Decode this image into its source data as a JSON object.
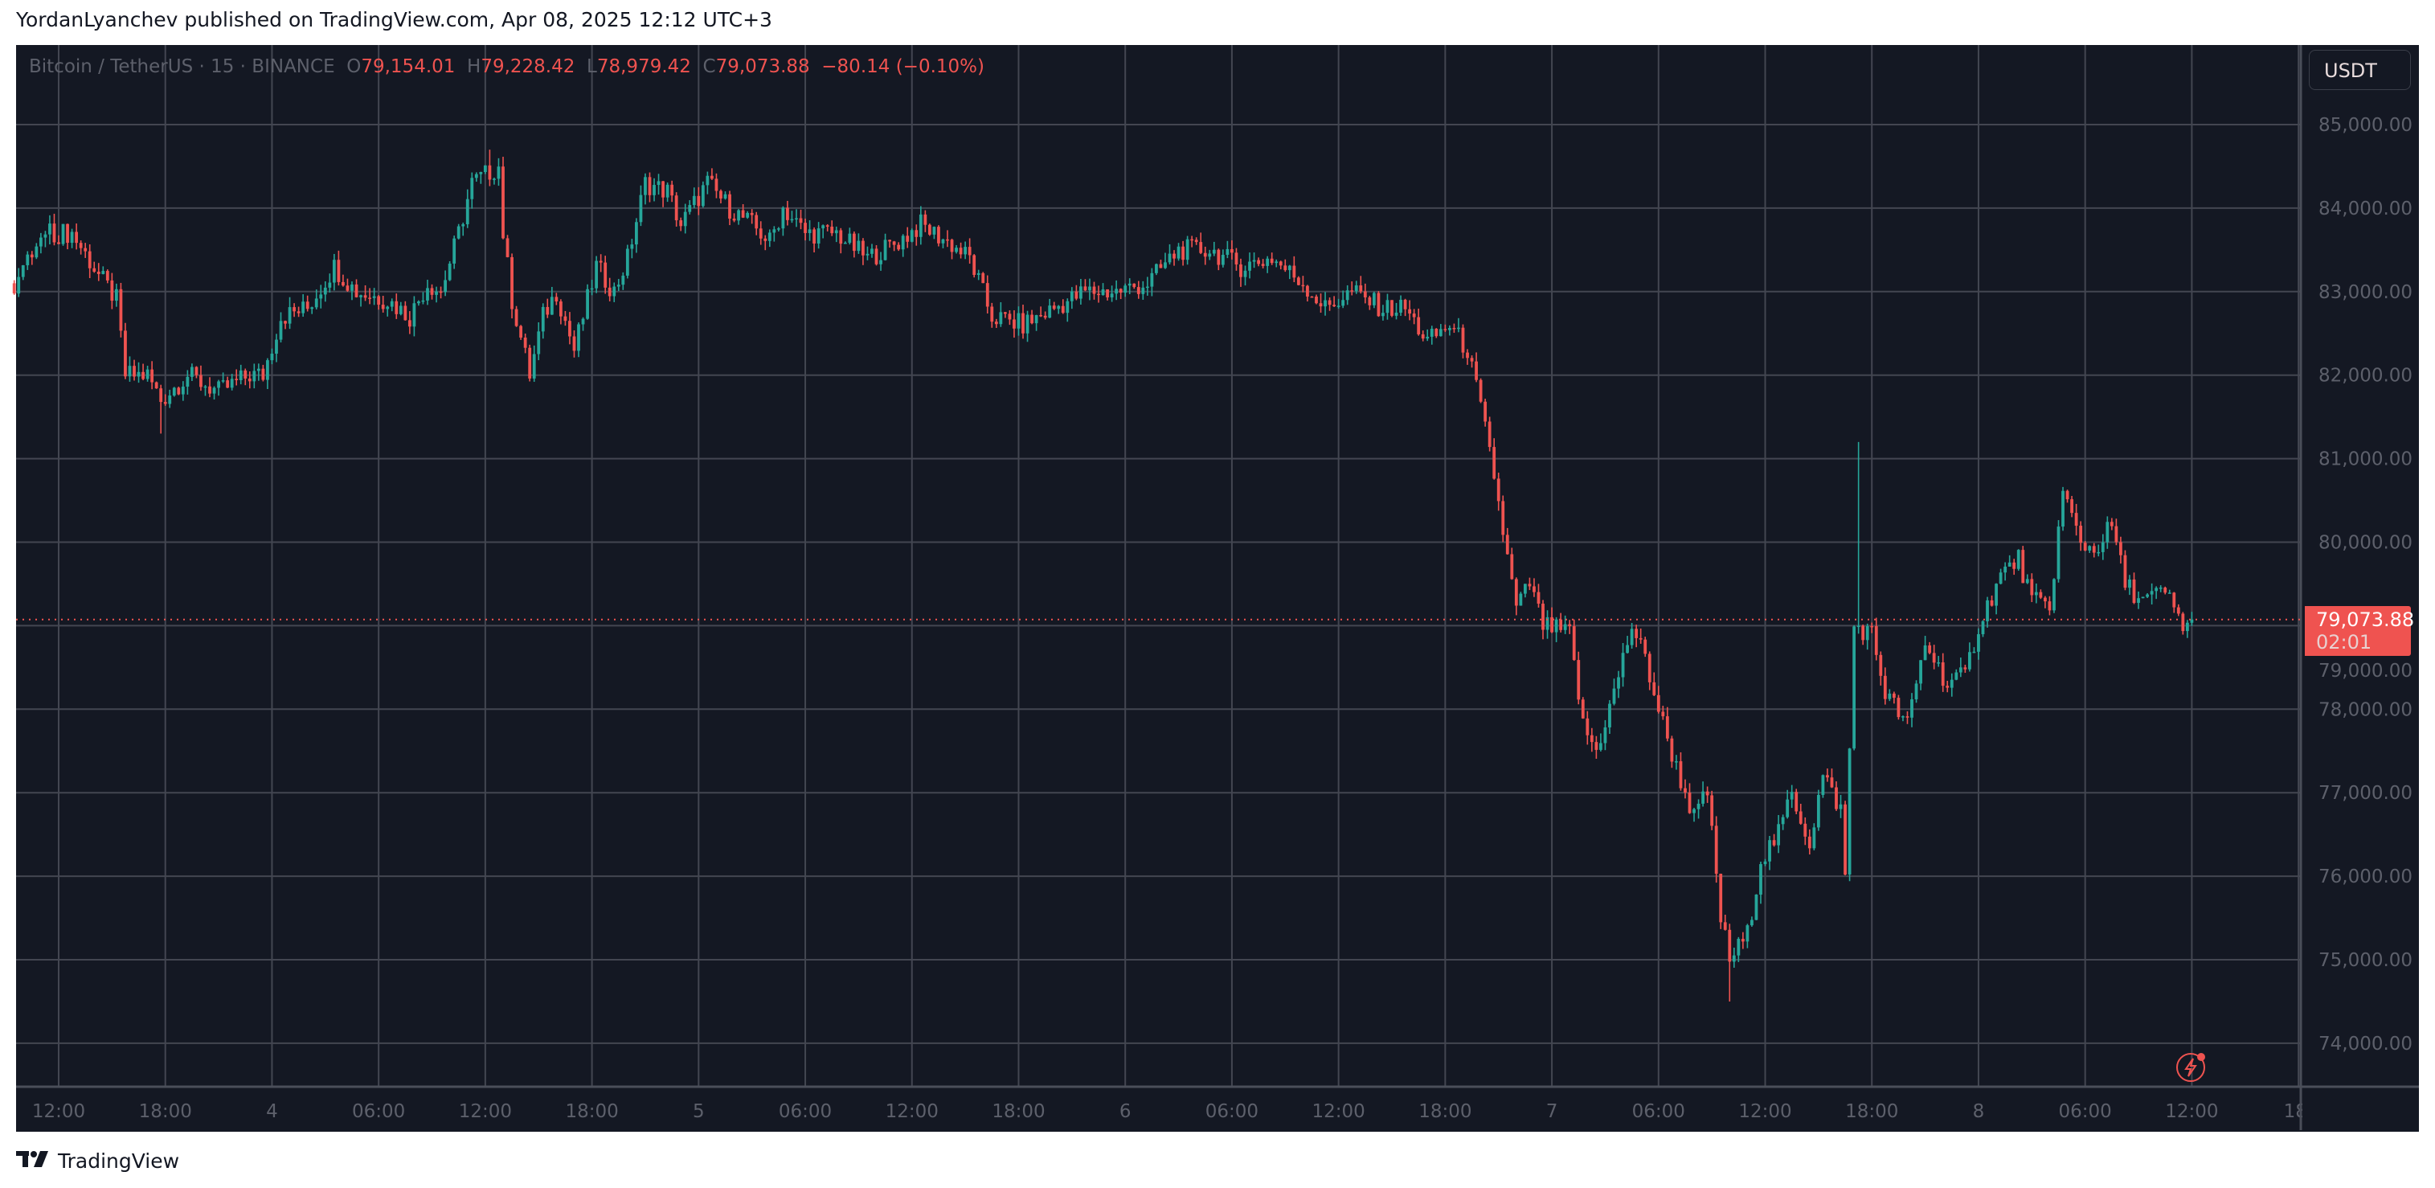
{
  "publish_line": "YordanLyanchev published on TradingView.com, Apr 08, 2025 12:12 UTC+3",
  "legend": {
    "symbol": "Bitcoin / TetherUS · 15 · BINANCE",
    "open_label": "O",
    "open": "79,154.01",
    "high_label": "H",
    "high": "79,228.42",
    "low_label": "L",
    "low": "78,979.42",
    "close_label": "C",
    "close": "79,073.88",
    "change": "−80.14 (−0.10%)"
  },
  "currency_button": "USDT",
  "last_price": {
    "value": "79,073.88",
    "countdown": "02:01"
  },
  "footer": {
    "logo_mark": "17",
    "brand": "TradingView"
  },
  "icons": {
    "alert": "lightning-icon",
    "logo": "tradingview-logo-icon"
  },
  "colors": {
    "up": "#26a69a",
    "down": "#ef5350",
    "background": "#141823",
    "grid": "#363a45",
    "last_price": "#ef5350"
  },
  "chart_data": {
    "type": "candlestick",
    "symbol": "BTCUSDT",
    "interval": "15",
    "exchange": "BINANCE",
    "ylim": [
      73500,
      85600
    ],
    "y_ticks": [
      "85,000.00",
      "84,000.00",
      "83,000.00",
      "82,000.00",
      "81,000.00",
      "80,000.00",
      "79,000.00",
      "78,000.00",
      "77,000.00",
      "76,000.00",
      "75,000.00",
      "74,000.00"
    ],
    "x_ticks": [
      "12:00",
      "18:00",
      "4",
      "06:00",
      "12:00",
      "18:00",
      "5",
      "06:00",
      "12:00",
      "18:00",
      "6",
      "06:00",
      "12:00",
      "18:00",
      "7",
      "06:00",
      "12:00",
      "18:00",
      "8",
      "06:00",
      "12:00",
      "18:"
    ],
    "grid": true,
    "last_price": 79073.88,
    "approx_close_path": [
      [
        "04-03 09:30",
        83100
      ],
      [
        "04-03 11:15",
        83700
      ],
      [
        "04-03 12:45",
        83700
      ],
      [
        "04-03 14:15",
        83200
      ],
      [
        "04-03 15:15",
        82900
      ],
      [
        "04-03 15:45",
        82000
      ],
      [
        "04-03 17:00",
        82000
      ],
      [
        "04-03 17:45",
        81700
      ],
      [
        "04-03 19:15",
        82000
      ],
      [
        "04-03 21:00",
        81800
      ],
      [
        "04-03 22:45",
        82000
      ],
      [
        "04-03 23:30",
        82000
      ],
      [
        "04-04 00:30",
        82700
      ],
      [
        "04-04 02:00",
        82800
      ],
      [
        "04-04 03:30",
        83300
      ],
      [
        "04-04 04:45",
        83000
      ],
      [
        "04-04 06:30",
        82900
      ],
      [
        "04-04 07:45",
        82700
      ],
      [
        "04-04 08:45",
        83100
      ],
      [
        "04-04 09:30",
        83000
      ],
      [
        "04-04 10:30",
        83700
      ],
      [
        "04-04 11:15",
        84300
      ],
      [
        "04-04 12:45",
        84500
      ],
      [
        "04-04 13:00",
        83700
      ],
      [
        "04-04 13:30",
        82900
      ],
      [
        "04-04 14:30",
        82000
      ],
      [
        "04-04 15:15",
        82700
      ],
      [
        "04-04 16:00",
        83000
      ],
      [
        "04-04 17:00",
        82300
      ],
      [
        "04-04 18:15",
        83300
      ],
      [
        "04-04 19:15",
        83000
      ],
      [
        "04-04 20:00",
        83400
      ],
      [
        "04-04 21:00",
        84300
      ],
      [
        "04-04 22:15",
        84200
      ],
      [
        "04-04 23:00",
        83800
      ],
      [
        "04-05 00:30",
        84300
      ],
      [
        "04-05 01:45",
        84000
      ],
      [
        "04-05 03:00",
        83800
      ],
      [
        "04-05 04:00",
        83600
      ],
      [
        "04-05 04:45",
        84000
      ],
      [
        "04-05 06:00",
        83700
      ],
      [
        "04-05 07:45",
        83700
      ],
      [
        "04-05 09:30",
        83400
      ],
      [
        "04-05 11:15",
        83600
      ],
      [
        "04-05 12:30",
        83800
      ],
      [
        "04-05 14:00",
        83600
      ],
      [
        "04-05 15:15",
        83400
      ],
      [
        "04-05 16:30",
        82700
      ],
      [
        "04-05 18:15",
        82600
      ],
      [
        "04-05 20:00",
        82800
      ],
      [
        "04-05 21:45",
        83000
      ],
      [
        "04-05 23:30",
        83000
      ],
      [
        "04-06 01:15",
        83100
      ],
      [
        "04-06 03:00",
        83500
      ],
      [
        "04-06 04:45",
        83500
      ],
      [
        "04-06 06:30",
        83300
      ],
      [
        "04-06 08:15",
        83400
      ],
      [
        "04-06 10:00",
        83100
      ],
      [
        "04-06 11:15",
        82800
      ],
      [
        "04-06 12:45",
        83000
      ],
      [
        "04-06 14:30",
        82800
      ],
      [
        "04-06 15:45",
        82800
      ],
      [
        "04-06 17:00",
        82400
      ],
      [
        "04-06 18:15",
        82600
      ],
      [
        "04-06 19:15",
        82300
      ],
      [
        "04-06 20:00",
        81600
      ],
      [
        "04-06 20:45",
        80800
      ],
      [
        "04-06 21:30",
        79800
      ],
      [
        "04-06 22:00",
        79200
      ],
      [
        "04-06 22:45",
        79500
      ],
      [
        "04-06 23:30",
        79000
      ],
      [
        "04-07 01:00",
        78900
      ],
      [
        "04-07 01:45",
        77800
      ],
      [
        "04-07 02:30",
        77500
      ],
      [
        "04-07 03:30",
        78200
      ],
      [
        "04-07 04:30",
        79000
      ],
      [
        "04-07 05:15",
        78600
      ],
      [
        "04-07 06:00",
        78000
      ],
      [
        "04-07 07:00",
        77300
      ],
      [
        "04-07 08:00",
        76700
      ],
      [
        "04-07 08:45",
        77000
      ],
      [
        "04-07 09:30",
        75500
      ],
      [
        "04-07 10:00",
        75000
      ],
      [
        "04-07 11:00",
        75300
      ],
      [
        "04-07 11:45",
        76200
      ],
      [
        "04-07 12:45",
        76500
      ],
      [
        "04-07 13:30",
        77000
      ],
      [
        "04-07 14:30",
        76400
      ],
      [
        "04-07 15:15",
        77200
      ],
      [
        "04-07 16:15",
        76800
      ],
      [
        "04-07 16:30",
        76000
      ],
      [
        "04-07 17:00",
        79000
      ],
      [
        "04-07 18:00",
        78900
      ],
      [
        "04-07 18:45",
        78200
      ],
      [
        "04-07 20:00",
        77800
      ],
      [
        "04-07 21:00",
        78800
      ],
      [
        "04-07 22:15",
        78300
      ],
      [
        "04-07 23:15",
        78400
      ],
      [
        "04-08 00:00",
        79000
      ],
      [
        "04-08 01:15",
        79600
      ],
      [
        "04-08 02:15",
        79800
      ],
      [
        "04-08 03:00",
        79300
      ],
      [
        "04-08 04:00",
        79200
      ],
      [
        "04-08 04:45",
        80600
      ],
      [
        "04-08 05:45",
        80000
      ],
      [
        "04-08 06:30",
        79900
      ],
      [
        "04-08 07:30",
        80200
      ],
      [
        "04-08 08:15",
        79500
      ],
      [
        "04-08 09:15",
        79300
      ],
      [
        "04-08 10:30",
        79400
      ],
      [
        "04-08 11:30",
        79000
      ],
      [
        "04-08 12:00",
        79073.88
      ]
    ],
    "notable_wicks": [
      [
        "04-07 17:15",
        81200,
        "high"
      ],
      [
        "04-07 10:00",
        74500,
        "low"
      ],
      [
        "04-04 12:15",
        84700,
        "high"
      ],
      [
        "04-03 17:45",
        81300,
        "low"
      ]
    ]
  }
}
